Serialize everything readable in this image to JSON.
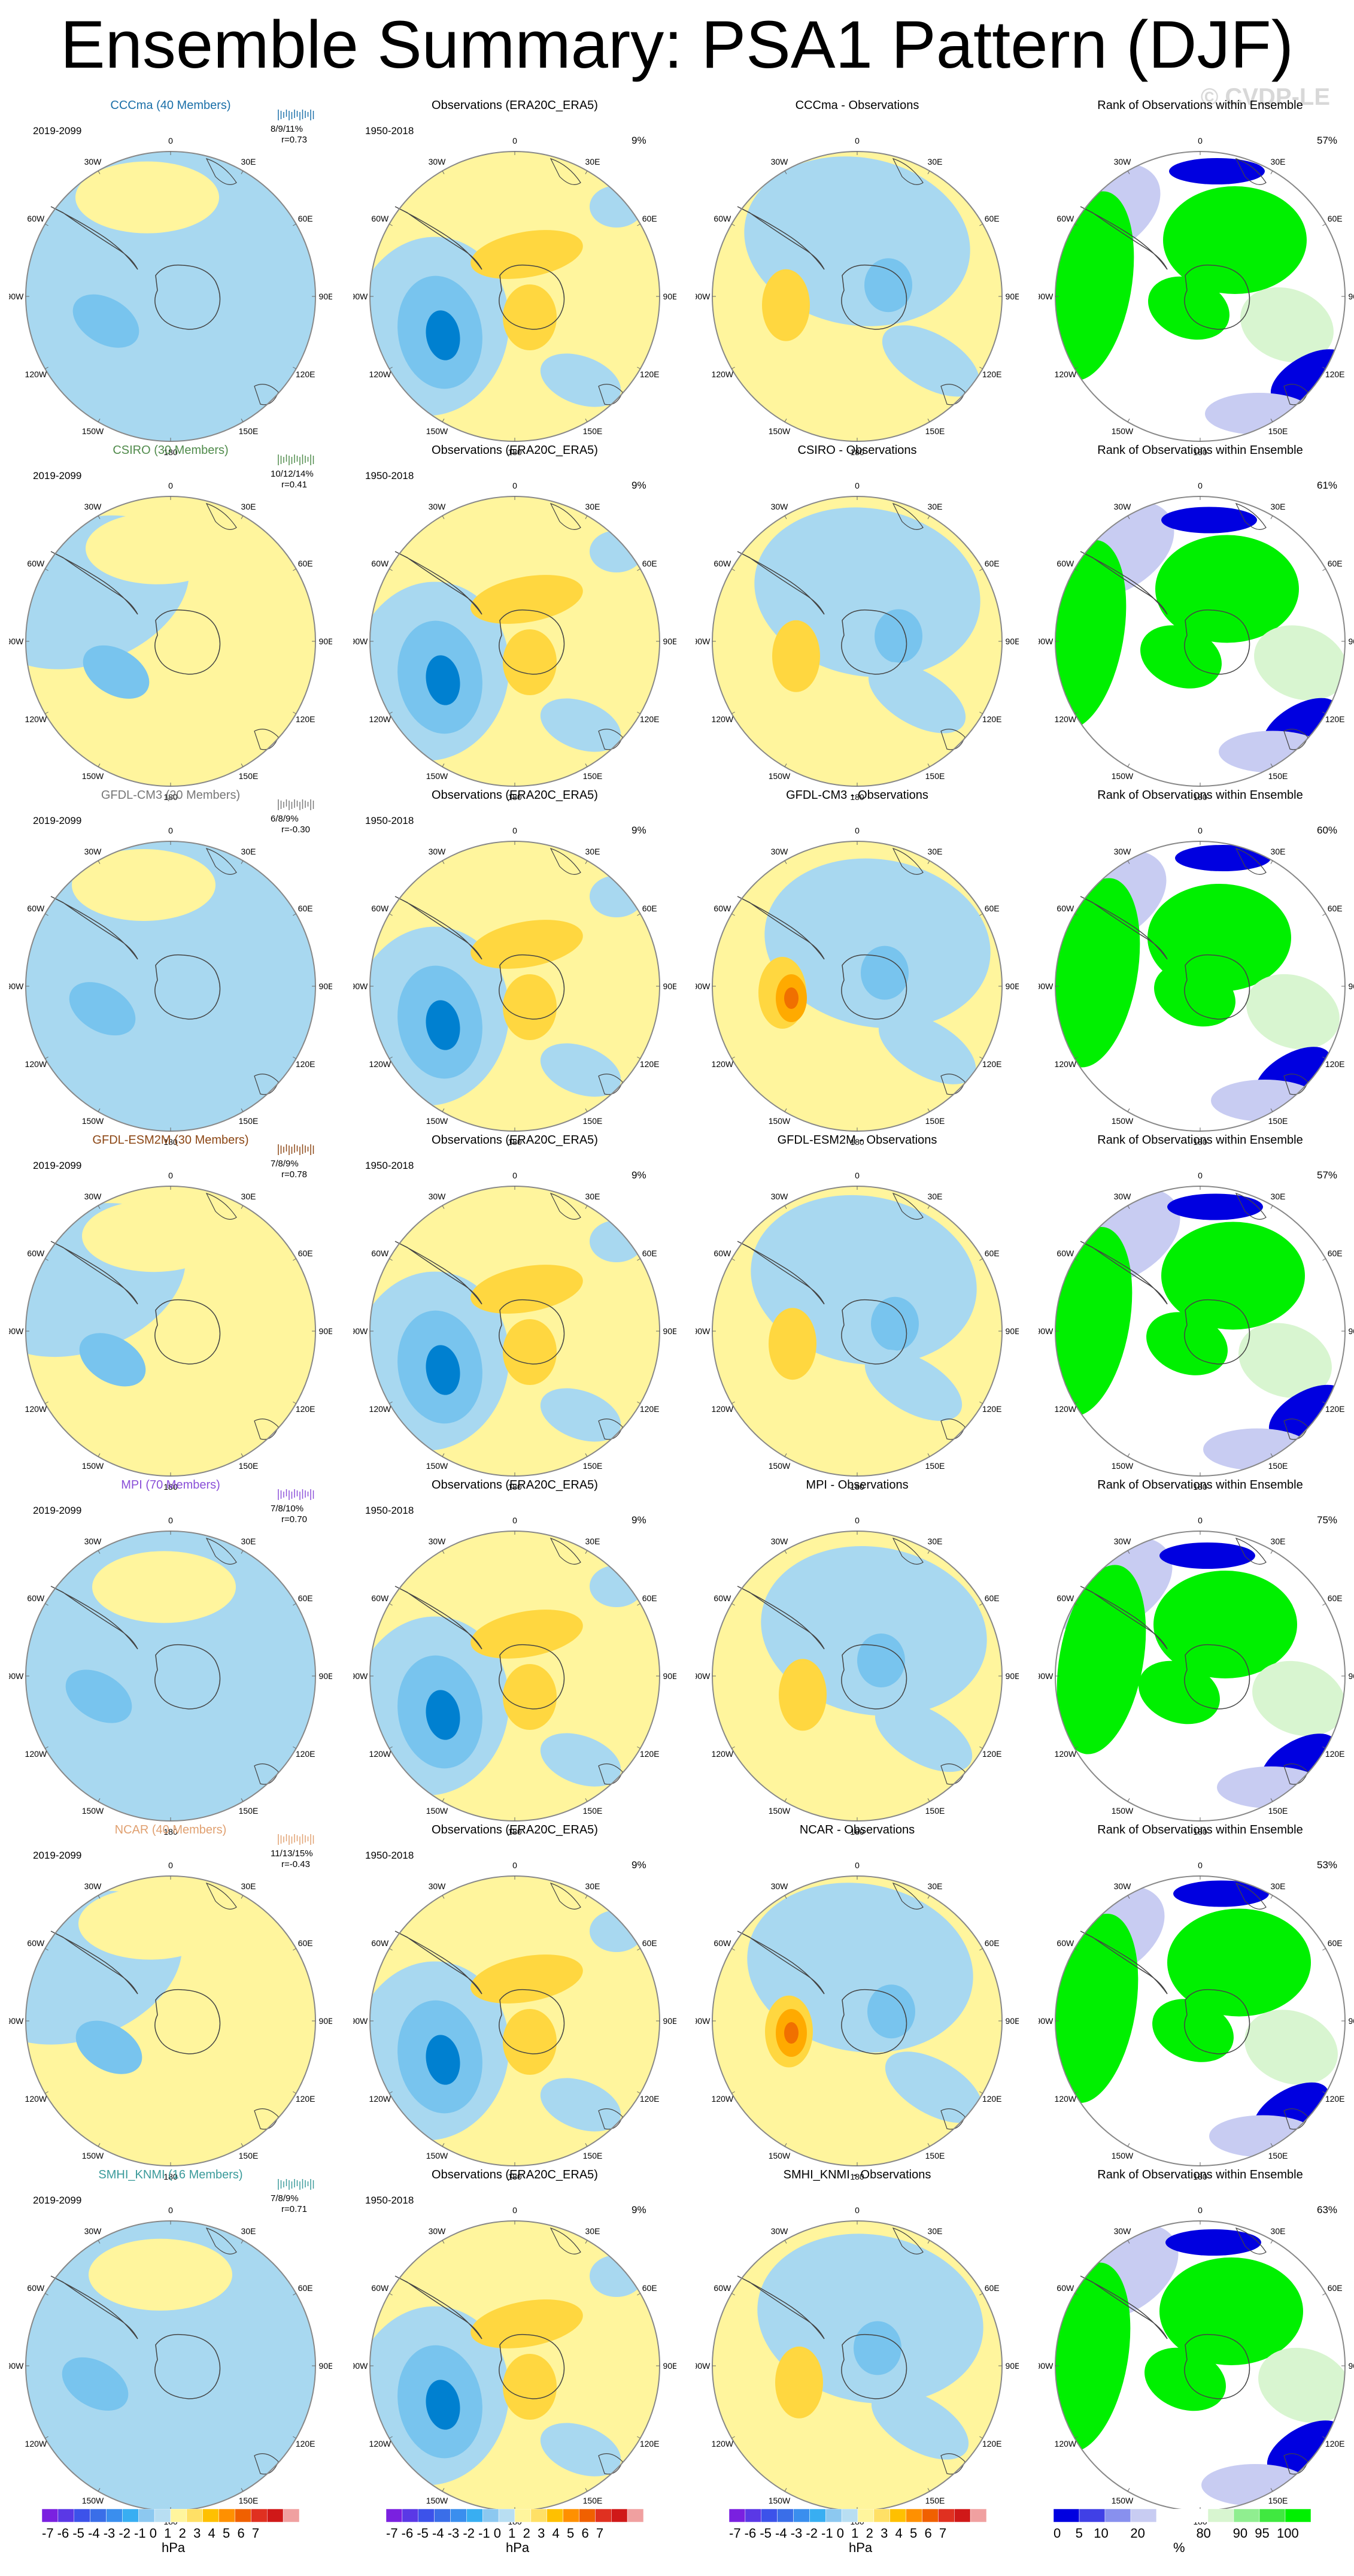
{
  "title": "Ensemble Summary: PSA1 Pattern (DJF)",
  "watermark": "© CVDP-LE",
  "lon_labels": [
    "0",
    "30E",
    "60E",
    "90E",
    "120E",
    "150E",
    "180",
    "150W",
    "120W",
    "90W",
    "60W",
    "30W"
  ],
  "colors": {
    "neg1": "#a8d8f0",
    "neg2": "#78c4ee",
    "neg3": "#40a8e8",
    "neg4": "#0080d0",
    "pos1": "#fff59d",
    "pos2": "#ffd740",
    "pos3": "#ffaa00",
    "pos4": "#f07000",
    "rank_green": "#00f000",
    "rank_lightgreen": "#d8f5d0",
    "rank_blue": "#0000e0",
    "rank_lightblue": "#c8ccf2"
  },
  "columns": {
    "obs_title": "Observations (ERA20C_ERA5)",
    "rank_title": "Rank of Observations within Ensemble",
    "model_years": "2019-2099",
    "obs_years": "1950-2018",
    "obs_pct": "9%"
  },
  "models": [
    {
      "name": "CCCma (40 Members)",
      "diff_title": "CCCma - Observations",
      "color": "#1a6fa8",
      "stat": "8/9/11%",
      "r": "r=0.73",
      "rank_pct": "57%"
    },
    {
      "name": "CSIRO (30 Members)",
      "diff_title": "CSIRO - Observations",
      "color": "#4f8a4a",
      "stat": "10/12/14%",
      "r": "r=0.41",
      "rank_pct": "61%"
    },
    {
      "name": "GFDL-CM3 (20 Members)",
      "diff_title": "GFDL-CM3 - Observations",
      "color": "#777777",
      "stat": "6/8/9%",
      "r": "r=-0.30",
      "rank_pct": "60%"
    },
    {
      "name": "GFDL-ESM2M (30 Members)",
      "diff_title": "GFDL-ESM2M - Observations",
      "color": "#8b4513",
      "stat": "7/8/9%",
      "r": "r=0.78",
      "rank_pct": "57%"
    },
    {
      "name": "MPI (70 Members)",
      "diff_title": "MPI - Observations",
      "color": "#8a4fd8",
      "stat": "7/8/10%",
      "r": "r=0.70",
      "rank_pct": "75%"
    },
    {
      "name": "NCAR (40 Members)",
      "diff_title": "NCAR - Observations",
      "color": "#e0a070",
      "stat": "11/13/15%",
      "r": "r=-0.43",
      "rank_pct": "53%"
    },
    {
      "name": "SMHI_KNMI (16 Members)",
      "diff_title": "SMHI_KNMI - Observations",
      "color": "#3a9a9a",
      "stat": "7/8/9%",
      "r": "r=0.71",
      "rank_pct": "63%"
    }
  ],
  "colorbars": {
    "hpa_ticks": "-7 -6 -5 -4 -3 -2 -1 0  1  2  3  4  5  6  7",
    "hpa_unit": "hPa",
    "hpa_colors": [
      "#7a20e0",
      "#5a38e6",
      "#3c52ea",
      "#3a6ee8",
      "#3a8eee",
      "#38aef2",
      "#8cc8f0",
      "#b8def2",
      "#fff59d",
      "#ffe066",
      "#ffc000",
      "#ff9000",
      "#f06000",
      "#e03020",
      "#d01818",
      "#f0a0a0"
    ],
    "rank_ticks": "0    5   10      20              80      90  95  100",
    "rank_unit": "%",
    "rank_colors": [
      "#0000e0",
      "#4040e6",
      "#8890ee",
      "#c8ccf2",
      "#ffffff",
      "#ffffff",
      "#d8f5d0",
      "#90ee90",
      "#40e840",
      "#00f000"
    ]
  }
}
